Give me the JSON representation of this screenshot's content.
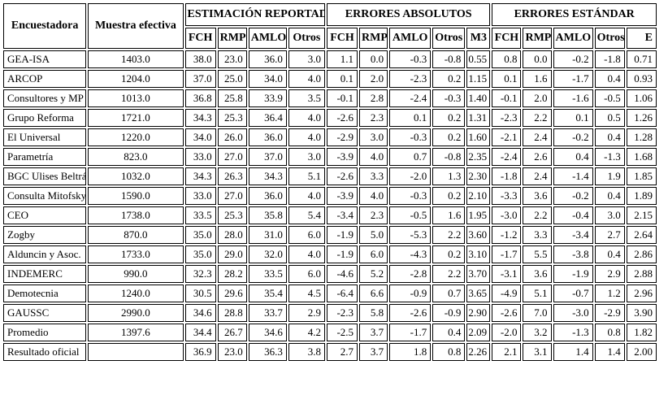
{
  "colors": {
    "background": "#ffffff",
    "border": "#000000",
    "text": "#000000"
  },
  "table": {
    "header": {
      "encuestadora": "Encuestadora",
      "muestra": "Muestra efectiva",
      "groups": [
        {
          "label": "ESTIMACIÓN REPORTADA",
          "subs": [
            "FCH",
            "RMP",
            "AMLO",
            "Otros"
          ]
        },
        {
          "label": "ERRORES ABSOLUTOS",
          "subs": [
            "FCH",
            "RMP",
            "AMLO",
            "Otros",
            "M3"
          ]
        },
        {
          "label": "ERRORES ESTÁNDAR",
          "subs": [
            "FCH",
            "RMP",
            "AMLO",
            "Otros",
            "E"
          ]
        }
      ]
    },
    "rows": [
      {
        "name": "GEA-ISA",
        "muestra": "1403.0",
        "vals": [
          "38.0",
          "23.0",
          "36.0",
          "3.0",
          "1.1",
          "0.0",
          "-0.3",
          "-0.8",
          "0.55",
          "0.8",
          "0.0",
          "-0.2",
          "-1.8",
          "0.71"
        ]
      },
      {
        "name": "ARCOP",
        "muestra": "1204.0",
        "vals": [
          "37.0",
          "25.0",
          "34.0",
          "4.0",
          "0.1",
          "2.0",
          "-2.3",
          "0.2",
          "1.15",
          "0.1",
          "1.6",
          "-1.7",
          "0.4",
          "0.93"
        ]
      },
      {
        "name": "Consultores y MP",
        "muestra": "1013.0",
        "vals": [
          "36.8",
          "25.8",
          "33.9",
          "3.5",
          "-0.1",
          "2.8",
          "-2.4",
          "-0.3",
          "1.40",
          "-0.1",
          "2.0",
          "-1.6",
          "-0.5",
          "1.06"
        ]
      },
      {
        "name": "Grupo Reforma",
        "muestra": "1721.0",
        "vals": [
          "34.3",
          "25.3",
          "36.4",
          "4.0",
          "-2.6",
          "2.3",
          "0.1",
          "0.2",
          "1.31",
          "-2.3",
          "2.2",
          "0.1",
          "0.5",
          "1.26"
        ]
      },
      {
        "name": "El Universal",
        "muestra": "1220.0",
        "vals": [
          "34.0",
          "26.0",
          "36.0",
          "4.0",
          "-2.9",
          "3.0",
          "-0.3",
          "0.2",
          "1.60",
          "-2.1",
          "2.4",
          "-0.2",
          "0.4",
          "1.28"
        ]
      },
      {
        "name": "Parametría",
        "muestra": "823.0",
        "vals": [
          "33.0",
          "27.0",
          "37.0",
          "3.0",
          "-3.9",
          "4.0",
          "0.7",
          "-0.8",
          "2.35",
          "-2.4",
          "2.6",
          "0.4",
          "-1.3",
          "1.68"
        ]
      },
      {
        "name": "BGC Ulises Beltrán",
        "muestra": "1032.0",
        "vals": [
          "34.3",
          "26.3",
          "34.3",
          "5.1",
          "-2.6",
          "3.3",
          "-2.0",
          "1.3",
          "2.30",
          "-1.8",
          "2.4",
          "-1.4",
          "1.9",
          "1.85"
        ]
      },
      {
        "name": "Consulta Mitofsky",
        "muestra": "1590.0",
        "vals": [
          "33.0",
          "27.0",
          "36.0",
          "4.0",
          "-3.9",
          "4.0",
          "-0.3",
          "0.2",
          "2.10",
          "-3.3",
          "3.6",
          "-0.2",
          "0.4",
          "1.89"
        ]
      },
      {
        "name": "CEO",
        "muestra": "1738.0",
        "vals": [
          "33.5",
          "25.3",
          "35.8",
          "5.4",
          "-3.4",
          "2.3",
          "-0.5",
          "1.6",
          "1.95",
          "-3.0",
          "2.2",
          "-0.4",
          "3.0",
          "2.15"
        ]
      },
      {
        "name": "Zogby",
        "muestra": "870.0",
        "vals": [
          "35.0",
          "28.0",
          "31.0",
          "6.0",
          "-1.9",
          "5.0",
          "-5.3",
          "2.2",
          "3.60",
          "-1.2",
          "3.3",
          "-3.4",
          "2.7",
          "2.64"
        ]
      },
      {
        "name": "Alduncin y Asoc.",
        "muestra": "1733.0",
        "vals": [
          "35.0",
          "29.0",
          "32.0",
          "4.0",
          "-1.9",
          "6.0",
          "-4.3",
          "0.2",
          "3.10",
          "-1.7",
          "5.5",
          "-3.8",
          "0.4",
          "2.86"
        ]
      },
      {
        "name": "INDEMERC",
        "muestra": "990.0",
        "vals": [
          "32.3",
          "28.2",
          "33.5",
          "6.0",
          "-4.6",
          "5.2",
          "-2.8",
          "2.2",
          "3.70",
          "-3.1",
          "3.6",
          "-1.9",
          "2.9",
          "2.88"
        ]
      },
      {
        "name": "Demotecnia",
        "muestra": "1240.0",
        "vals": [
          "30.5",
          "29.6",
          "35.4",
          "4.5",
          "-6.4",
          "6.6",
          "-0.9",
          "0.7",
          "3.65",
          "-4.9",
          "5.1",
          "-0.7",
          "1.2",
          "2.96"
        ]
      },
      {
        "name": "GAUSSC",
        "muestra": "2990.0",
        "vals": [
          "34.6",
          "28.8",
          "33.7",
          "2.9",
          "-2.3",
          "5.8",
          "-2.6",
          "-0.9",
          "2.90",
          "-2.6",
          "7.0",
          "-3.0",
          "-2.9",
          "3.90"
        ]
      },
      {
        "name": "Promedio",
        "muestra": "1397.6",
        "vals": [
          "34.4",
          "26.7",
          "34.6",
          "4.2",
          "-2.5",
          "3.7",
          "-1.7",
          "0.4",
          "2.09",
          "-2.0",
          "3.2",
          "-1.3",
          "0.8",
          "1.82"
        ]
      },
      {
        "name": "Resultado oficial",
        "muestra": "",
        "vals": [
          "36.9",
          "23.0",
          "36.3",
          "3.8",
          "2.7",
          "3.7",
          "1.8",
          "0.8",
          "2.26",
          "2.1",
          "3.1",
          "1.4",
          "1.4",
          "2.00"
        ]
      }
    ]
  }
}
